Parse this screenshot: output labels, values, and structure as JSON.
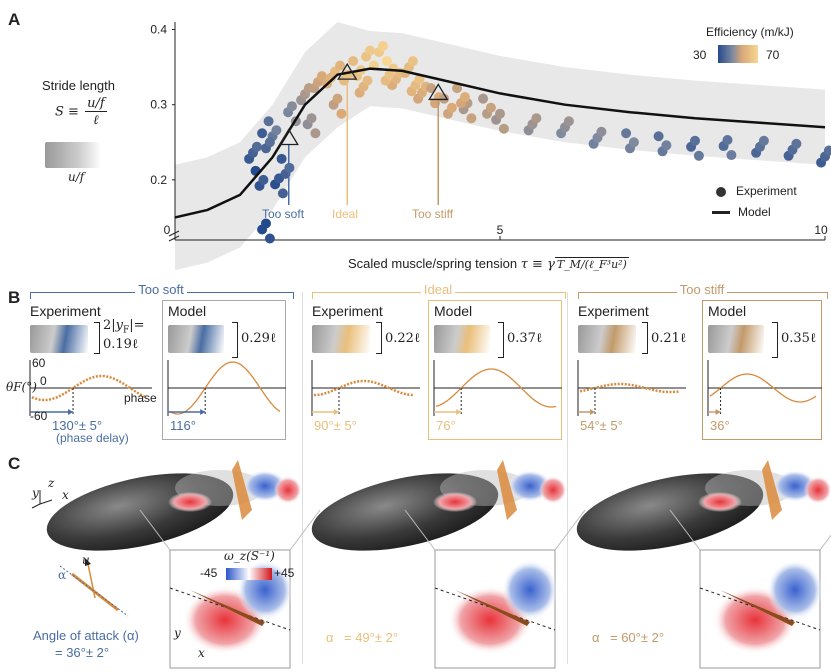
{
  "panel_a": {
    "letter": "A",
    "stride": {
      "label": "Stride length",
      "symbol": "S ≡",
      "num": "u/f",
      "den": "ℓ",
      "arrow_label": "u/f"
    },
    "y_ticks": [
      "0.4",
      "0.3",
      "0.2"
    ],
    "x_ticks": [
      "0",
      "5",
      "10"
    ],
    "x_axis_label": "Scaled muscle/spring tension τ ≡ γ√(T_M/(ℓ_F³u²))",
    "x_axis_label_prefix": "Scaled muscle/spring tension",
    "x_axis_label_tau": "τ ≡ γ",
    "x_axis_label_sqrt": "T_M/(ℓ_F³u²)",
    "colorbar": {
      "title": "Efficiency (m/kJ)",
      "min_label": "30",
      "max_label": "70",
      "colors": [
        "#2b4f8f",
        "#6f86a8",
        "#c9a98a",
        "#f1c27d",
        "#f6d48e"
      ]
    },
    "legend": {
      "experiment": "Experiment",
      "model": "Model"
    },
    "markers": {
      "too_soft": "Too soft",
      "ideal": "Ideal",
      "too_stiff": "Too stiff"
    },
    "colors": {
      "soft": "#4a6da3",
      "ideal": "#eabf7a",
      "stiff": "#c29a6a",
      "band": "#e8e8e8"
    }
  },
  "chart_data": {
    "type": "scatter",
    "xlabel": "Scaled muscle/spring tension τ ≡ γ√(T_M/(ℓ_F³u²))",
    "ylabel": "",
    "xlim": [
      0,
      10
    ],
    "ylim": [
      0.12,
      0.41
    ],
    "series": [
      {
        "name": "Model",
        "x": [
          0,
          0.5,
          1,
          1.5,
          2,
          2.5,
          3,
          3.5,
          4,
          5,
          6,
          7,
          8,
          9,
          10
        ],
        "y": [
          0.15,
          0.16,
          0.18,
          0.23,
          0.3,
          0.34,
          0.348,
          0.345,
          0.335,
          0.315,
          0.3,
          0.29,
          0.282,
          0.276,
          0.27
        ]
      },
      {
        "name": "Experiment",
        "x": [
          1.2,
          1.3,
          1.5,
          1.6,
          1.8,
          2.0,
          2.2,
          2.4,
          2.6,
          2.8,
          3.0,
          3.2,
          3.4,
          3.6,
          3.8,
          4.0,
          4.2,
          4.5,
          5.0,
          5.5,
          6.0,
          6.5,
          7.0,
          7.5,
          8.0,
          8.5,
          9.0,
          9.5,
          10.0,
          1.4,
          1.7,
          2.1,
          2.5,
          2.9,
          3.3,
          3.7,
          4.4,
          4.8,
          1.4
        ],
        "y": [
          0.24,
          0.2,
          0.27,
          0.19,
          0.29,
          0.31,
          0.33,
          0.34,
          0.34,
          0.35,
          0.36,
          0.37,
          0.33,
          0.35,
          0.32,
          0.31,
          0.3,
          0.29,
          0.28,
          0.27,
          0.27,
          0.26,
          0.25,
          0.25,
          0.24,
          0.245,
          0.24,
          0.24,
          0.235,
          0.25,
          0.22,
          0.27,
          0.3,
          0.32,
          0.34,
          0.33,
          0.31,
          0.3,
          0.13
        ],
        "efficiency": [
          35,
          32,
          40,
          33,
          45,
          50,
          55,
          60,
          62,
          64,
          66,
          68,
          60,
          62,
          58,
          56,
          55,
          52,
          50,
          48,
          46,
          44,
          42,
          40,
          38,
          39,
          38,
          37,
          36,
          36,
          35,
          48,
          55,
          60,
          64,
          62,
          56,
          52,
          30
        ]
      }
    ]
  },
  "panel_b": {
    "letter": "B",
    "groups": [
      {
        "title": "Too soft",
        "color": "#4a6da3",
        "experiment": {
          "label": "Experiment",
          "amp": "2|y_F| = 0.19ℓ",
          "amp_top": "2|y",
          "amp_sub": "F",
          "amp_rest": "|=",
          "amp_bottom": "0.19ℓ",
          "delay": "130°± 5°",
          "delay_note": "(phase delay)"
        },
        "model": {
          "label": "Model",
          "amp": "0.29ℓ",
          "delay": "116°"
        }
      },
      {
        "title": "Ideal",
        "color": "#eabf7a",
        "experiment": {
          "label": "Experiment",
          "amp": "0.22ℓ",
          "delay": "90°± 5°"
        },
        "model": {
          "label": "Model",
          "amp": "0.37ℓ",
          "delay": "76°"
        }
      },
      {
        "title": "Too stiff",
        "color": "#c29a6a",
        "experiment": {
          "label": "Experiment",
          "amp": "0.21ℓ",
          "delay": "54°± 5°"
        },
        "model": {
          "label": "Model",
          "amp": "0.35ℓ",
          "delay": "36°"
        }
      }
    ],
    "theta_label": "θF(°)",
    "theta_ticks": [
      "60",
      "0",
      "-60"
    ],
    "phase_label": "phase"
  },
  "panel_c": {
    "letter": "C",
    "axes": {
      "y": "y",
      "z": "z",
      "x": "x"
    },
    "inset_axes": {
      "y": "y",
      "x": "x"
    },
    "vector_labels": {
      "u": "u",
      "alpha": "α"
    },
    "vorticity": {
      "label": "ω_z(S⁻¹)",
      "min": "-45",
      "max": "+45"
    },
    "angles": [
      {
        "label": "Angle of attack (α)",
        "value": "= 36°± 2°",
        "color": "#4a6da3"
      },
      {
        "label": "α",
        "value": "= 49°± 2°",
        "color": "#eabf7a"
      },
      {
        "label": "α",
        "value": "= 60°± 2°",
        "color": "#c29a6a"
      }
    ]
  }
}
